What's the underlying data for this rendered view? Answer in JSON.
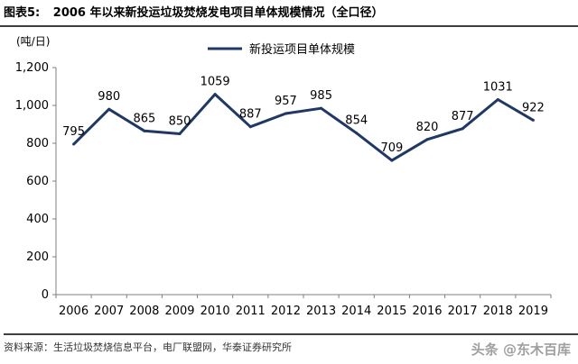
{
  "header": {
    "figure_label": "图表5:",
    "title": "2006 年以来新投运垃圾焚烧发电项目单体规模情况（全口径）"
  },
  "footer": {
    "source": "资料来源：生活垃圾焚烧信息平台，电厂联盟网，华泰证券研究所"
  },
  "watermark": {
    "text": "头条 @东木百库"
  },
  "colors": {
    "series": "#1f3864",
    "axis": "#7f7f7f",
    "text": "#000000"
  },
  "chart_data": {
    "type": "line",
    "unit_label": "(吨/日)",
    "categories": [
      "2006",
      "2007",
      "2008",
      "2009",
      "2010",
      "2011",
      "2012",
      "2013",
      "2014",
      "2015",
      "2016",
      "2017",
      "2018",
      "2019"
    ],
    "series": [
      {
        "name": "新投运项目单体规模",
        "values": [
          795,
          980,
          865,
          850,
          1059,
          887,
          957,
          985,
          854,
          709,
          820,
          877,
          1031,
          922
        ]
      }
    ],
    "value_labels": [
      "795",
      "980",
      "865",
      "850",
      "1059",
      "887",
      "957",
      "985",
      "854",
      "709",
      "820",
      "877",
      "1031",
      "922"
    ],
    "ylim": [
      0,
      1200
    ],
    "yticks": [
      "0",
      "200",
      "400",
      "600",
      "800",
      "1,000",
      "1,200"
    ],
    "ytick_values": [
      0,
      200,
      400,
      600,
      800,
      1000,
      1200
    ],
    "grid": false,
    "legend": "top-center"
  }
}
